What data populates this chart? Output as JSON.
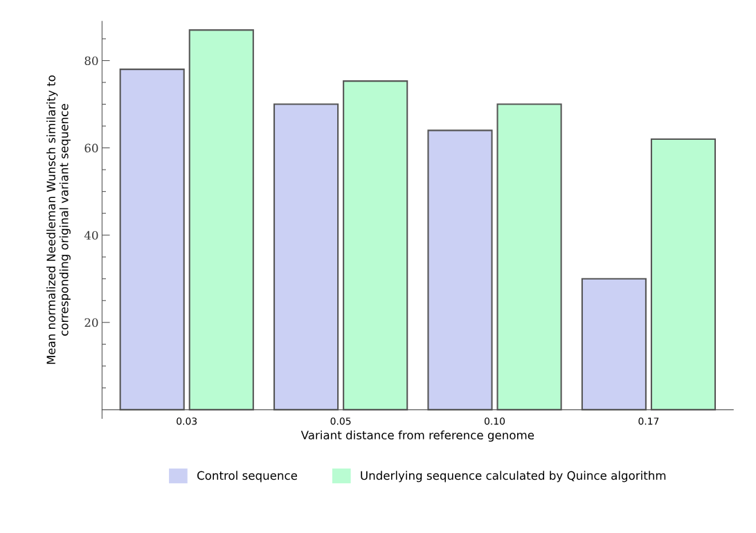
{
  "chart_data": {
    "type": "bar",
    "categories": [
      "0.03",
      "0.05",
      "0.10",
      "0.17"
    ],
    "xlabel": "Variant distance from reference genome",
    "ylabel": "Mean normalized Needleman Wunsch similarity to\ncorresponding original variant sequence",
    "series": [
      {
        "name": "Control sequence",
        "color": "#cbd0f4",
        "values": [
          78,
          70,
          64,
          30
        ]
      },
      {
        "name": "Underlying sequence calculated by Quince algorithm",
        "color": "#b9fcd2",
        "values": [
          87,
          75.3,
          70,
          62
        ]
      }
    ],
    "ylim": [
      -2,
      89
    ],
    "yticks": [
      {
        "value": 5,
        "label": null
      },
      {
        "value": 10,
        "label": null
      },
      {
        "value": 15,
        "label": null
      },
      20,
      {
        "value": 25,
        "label": null
      },
      {
        "value": 30,
        "label": null
      },
      {
        "value": 35,
        "label": null
      },
      40,
      {
        "value": 45,
        "label": null
      },
      {
        "value": 50,
        "label": null
      },
      {
        "value": 55,
        "label": null
      },
      60,
      {
        "value": 65,
        "label": null
      },
      {
        "value": 70,
        "label": null
      },
      {
        "value": 75,
        "label": null
      },
      80,
      {
        "value": 85,
        "label": null
      }
    ],
    "grid": false,
    "legend": "bottom"
  }
}
